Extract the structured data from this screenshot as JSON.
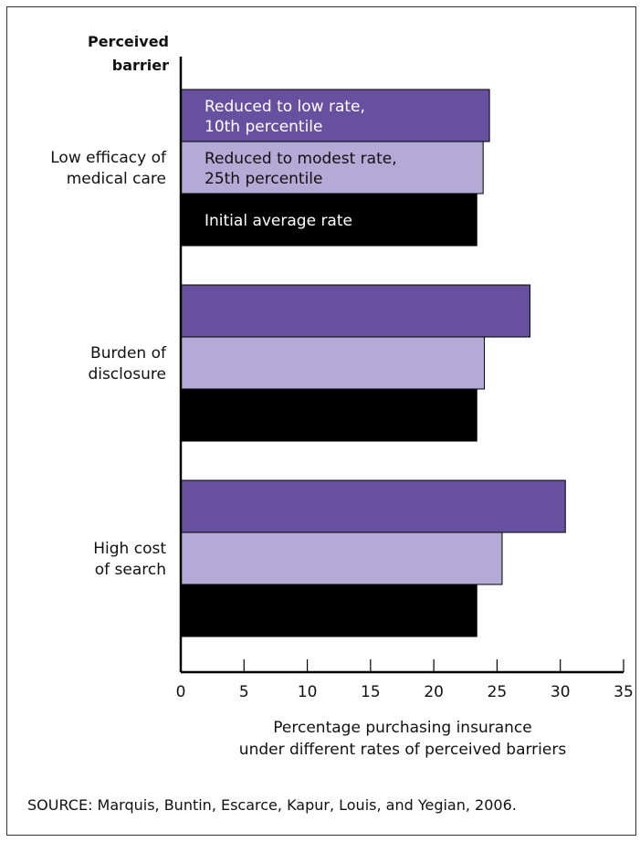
{
  "chart_data": {
    "type": "bar",
    "orientation": "horizontal",
    "y_title": "Perceived barrier",
    "xlabel": "Percentage purchasing insurance under different rates of perceived barriers",
    "xlim": [
      0,
      35
    ],
    "xticks": [
      0,
      5,
      10,
      15,
      20,
      25,
      30,
      35
    ],
    "categories": [
      "Low efficacy of medical care",
      "Burden of disclosure",
      "High cost of search"
    ],
    "series": [
      {
        "name": "Reduced to low rate, 10th percentile",
        "color": "#6850a0",
        "values": [
          24.4,
          27.6,
          30.4
        ]
      },
      {
        "name": "Reduced to modest rate, 25th percentile",
        "color": "#b3aad5",
        "values": [
          23.9,
          24.0,
          25.4
        ]
      },
      {
        "name": "Initial average rate",
        "color": "#000000",
        "values": [
          23.4,
          23.4,
          23.4
        ]
      }
    ],
    "legend_placement": "inside first group",
    "grid": false
  },
  "source": "SOURCE: Marquis, Buntin, Escarce, Kapur, Louis, and Yegian, 2006."
}
